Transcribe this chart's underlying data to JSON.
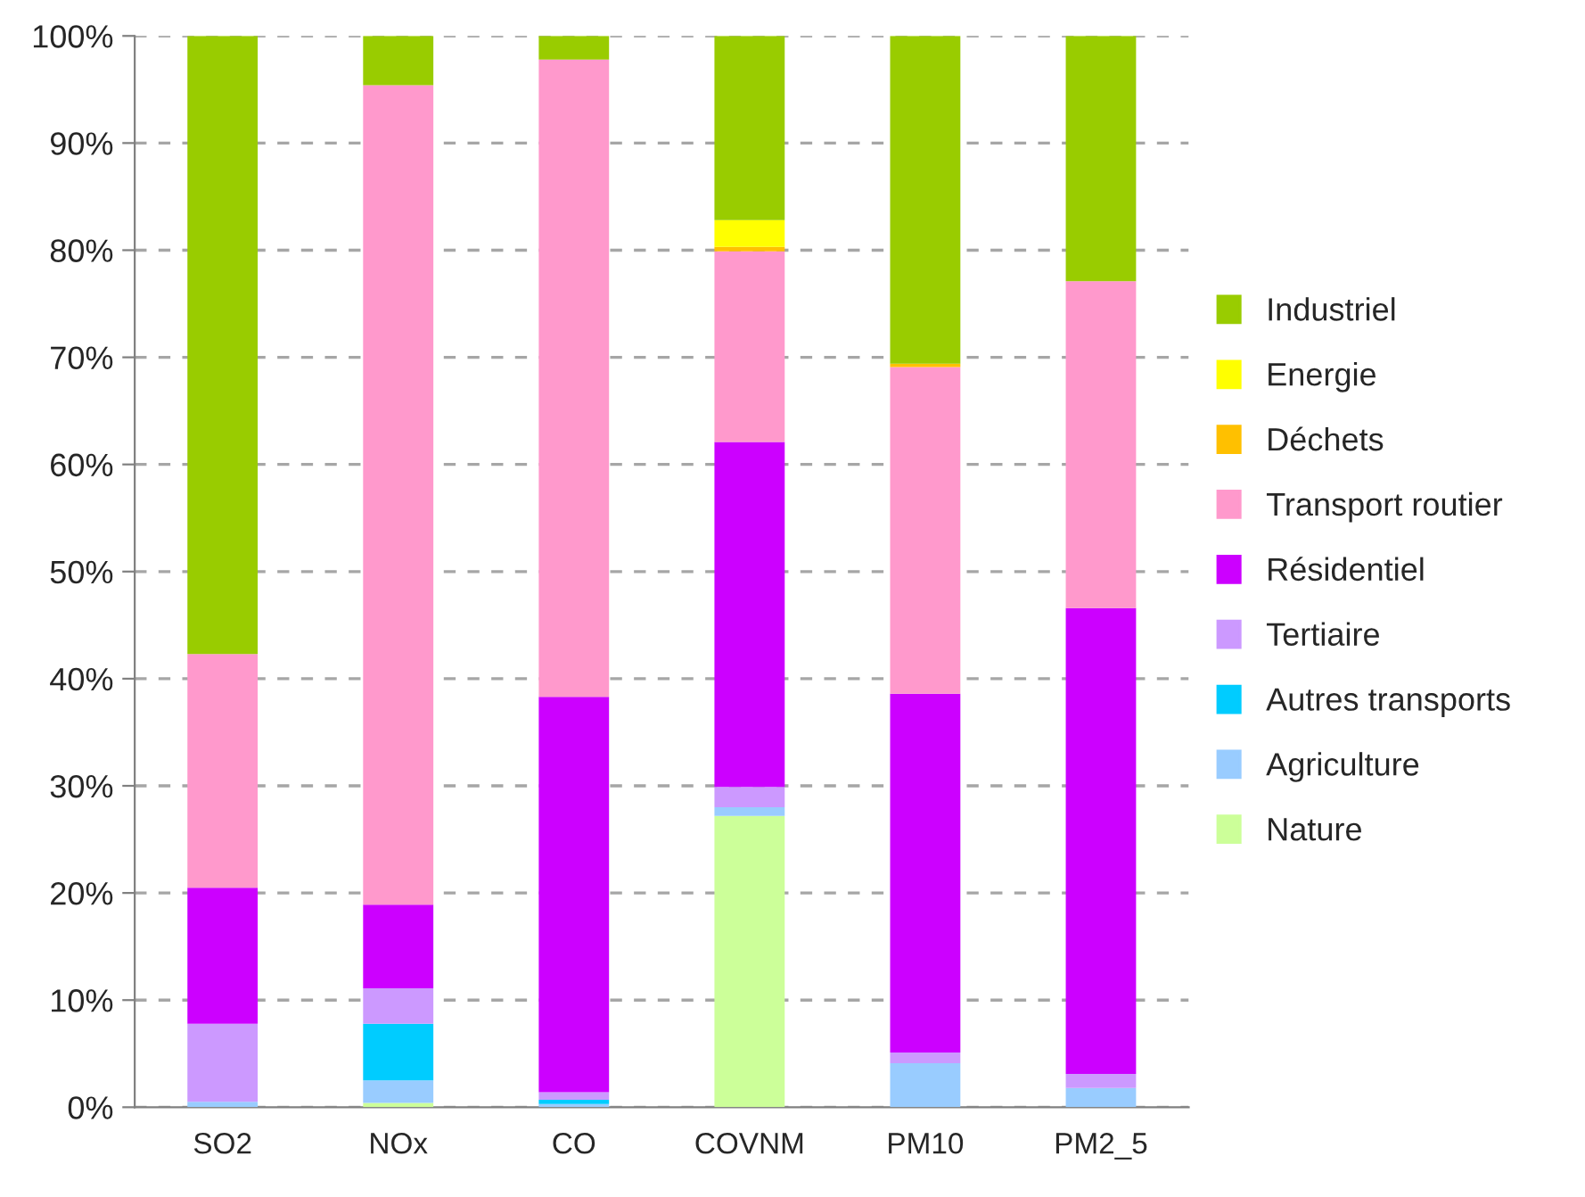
{
  "chart_data": {
    "type": "bar",
    "stacked": true,
    "categories": [
      "SO2",
      "NOx",
      "CO",
      "COVNM",
      "PM10",
      "PM2_5"
    ],
    "series": [
      {
        "name": "Nature",
        "color": "#ccff99",
        "values": [
          0,
          0.4,
          0,
          27.2,
          0,
          0
        ]
      },
      {
        "name": "Agriculture",
        "color": "#99ccff",
        "values": [
          0.5,
          2.1,
          0.3,
          0.8,
          4.1,
          1.8
        ]
      },
      {
        "name": "Autres transports",
        "color": "#00ccff",
        "values": [
          0,
          5.3,
          0.4,
          0,
          0,
          0
        ]
      },
      {
        "name": "Tertiaire",
        "color": "#cc99ff",
        "values": [
          7.3,
          3.3,
          0.7,
          1.9,
          1.0,
          1.3
        ]
      },
      {
        "name": "Résidentiel",
        "color": "#cc00ff",
        "values": [
          12.7,
          7.8,
          36.9,
          32.2,
          33.5,
          43.5
        ]
      },
      {
        "name": "Transport routier",
        "color": "#ff99cc",
        "values": [
          21.8,
          76.5,
          59.5,
          17.8,
          30.5,
          30.5
        ]
      },
      {
        "name": "Déchets",
        "color": "#ffc000",
        "values": [
          0,
          0,
          0,
          0.4,
          0.3,
          0
        ]
      },
      {
        "name": "Energie",
        "color": "#ffff00",
        "values": [
          0,
          0,
          0,
          2.5,
          0,
          0
        ]
      },
      {
        "name": "Industriel",
        "color": "#99cc00",
        "values": [
          57.7,
          4.6,
          2.2,
          17.2,
          30.6,
          22.9
        ]
      }
    ],
    "ylim": [
      0,
      100
    ],
    "yticks": [
      {
        "value": 0,
        "label": "0%"
      },
      {
        "value": 10,
        "label": "10%"
      },
      {
        "value": 20,
        "label": "20%"
      },
      {
        "value": 30,
        "label": "30%"
      },
      {
        "value": 40,
        "label": "40%"
      },
      {
        "value": 50,
        "label": "50%"
      },
      {
        "value": 60,
        "label": "60%"
      },
      {
        "value": 70,
        "label": "70%"
      },
      {
        "value": 80,
        "label": "80%"
      },
      {
        "value": 90,
        "label": "90%"
      },
      {
        "value": 100,
        "label": "100%"
      }
    ],
    "grid": "y",
    "legend": "right"
  }
}
